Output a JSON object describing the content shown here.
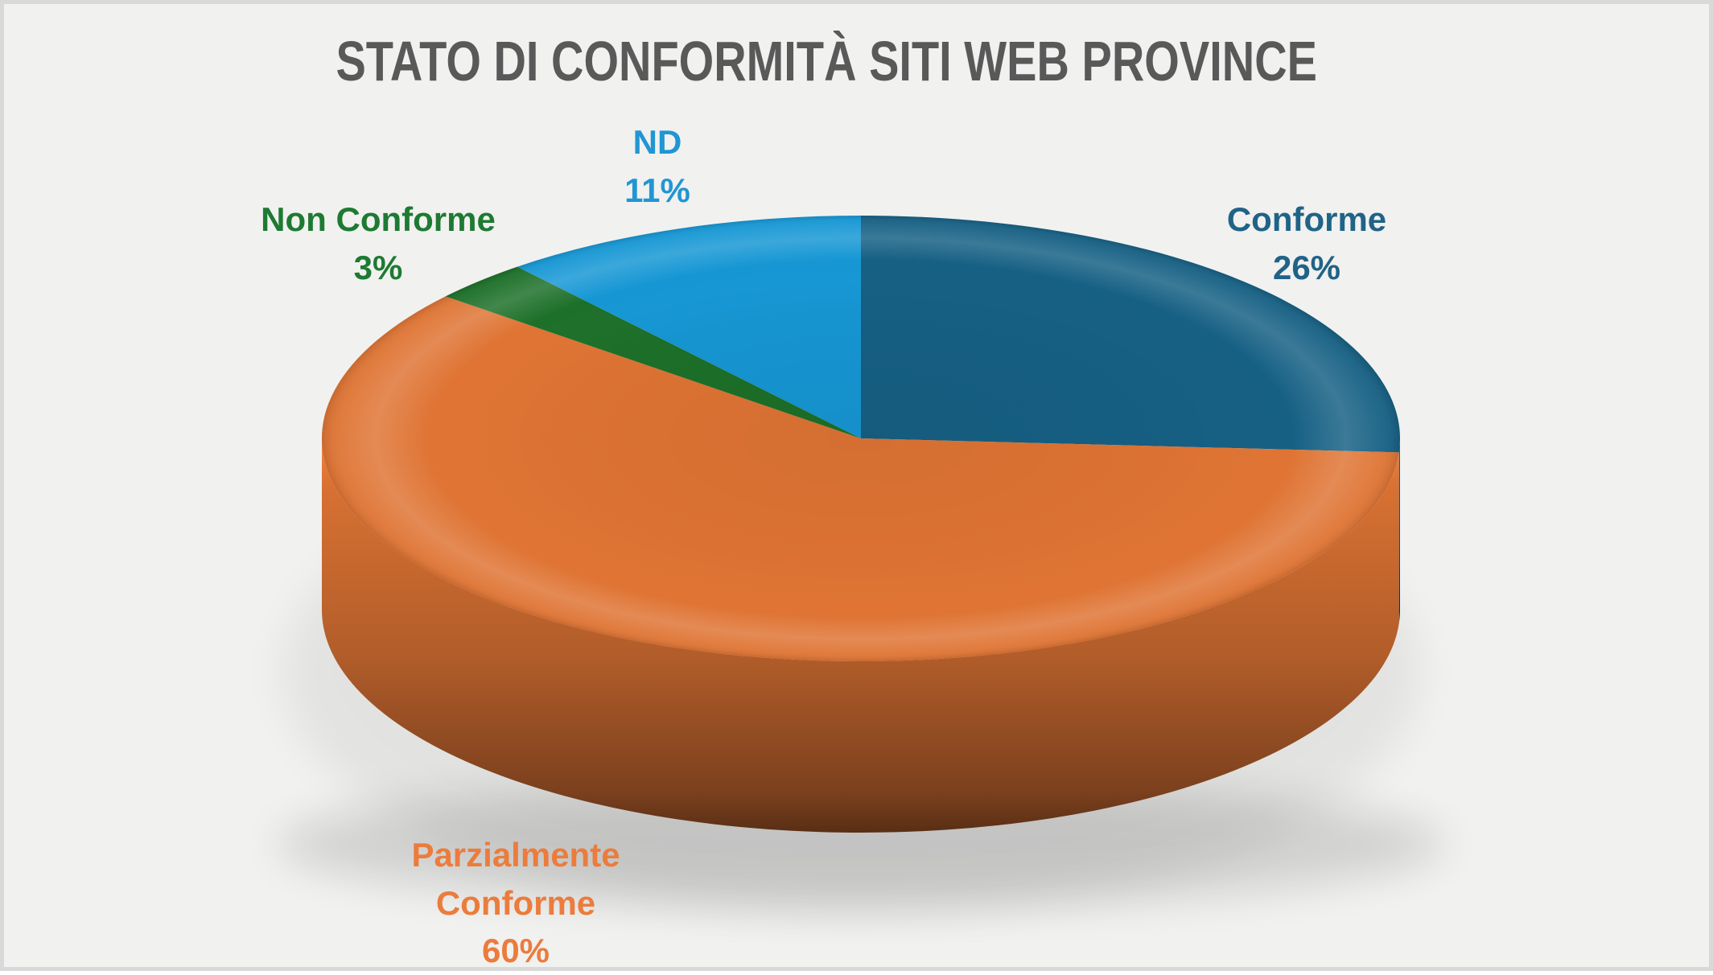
{
  "title": "STATO DI CONFORMITÀ SITI WEB PROVINCE",
  "style": {
    "background": "#F1F1F0",
    "border_color": "#D9D9D9",
    "title_color": "#595959"
  },
  "chart_data": {
    "type": "pie",
    "title": "STATO DI CONFORMITÀ SITI WEB PROVINCE",
    "effect": "3d",
    "start_angle_deg": 0,
    "direction": "clockwise",
    "legend_position": "outside-labels",
    "unit": "%",
    "slices": [
      {
        "label": "Conforme",
        "value": 26,
        "pct": "26%",
        "color": "#166084",
        "label_color": "#206387"
      },
      {
        "label": "Parzialmente Conforme",
        "value": 60,
        "pct": "60%",
        "color": "#DF7434",
        "label_color": "#EB7C3C"
      },
      {
        "label": "Non Conforme",
        "value": 3,
        "pct": "3%",
        "color": "#1D7029",
        "label_color": "#1E7A32"
      },
      {
        "label": "ND",
        "value": 11,
        "pct": "11%",
        "color": "#1697D4",
        "label_color": "#2196D3"
      }
    ]
  }
}
